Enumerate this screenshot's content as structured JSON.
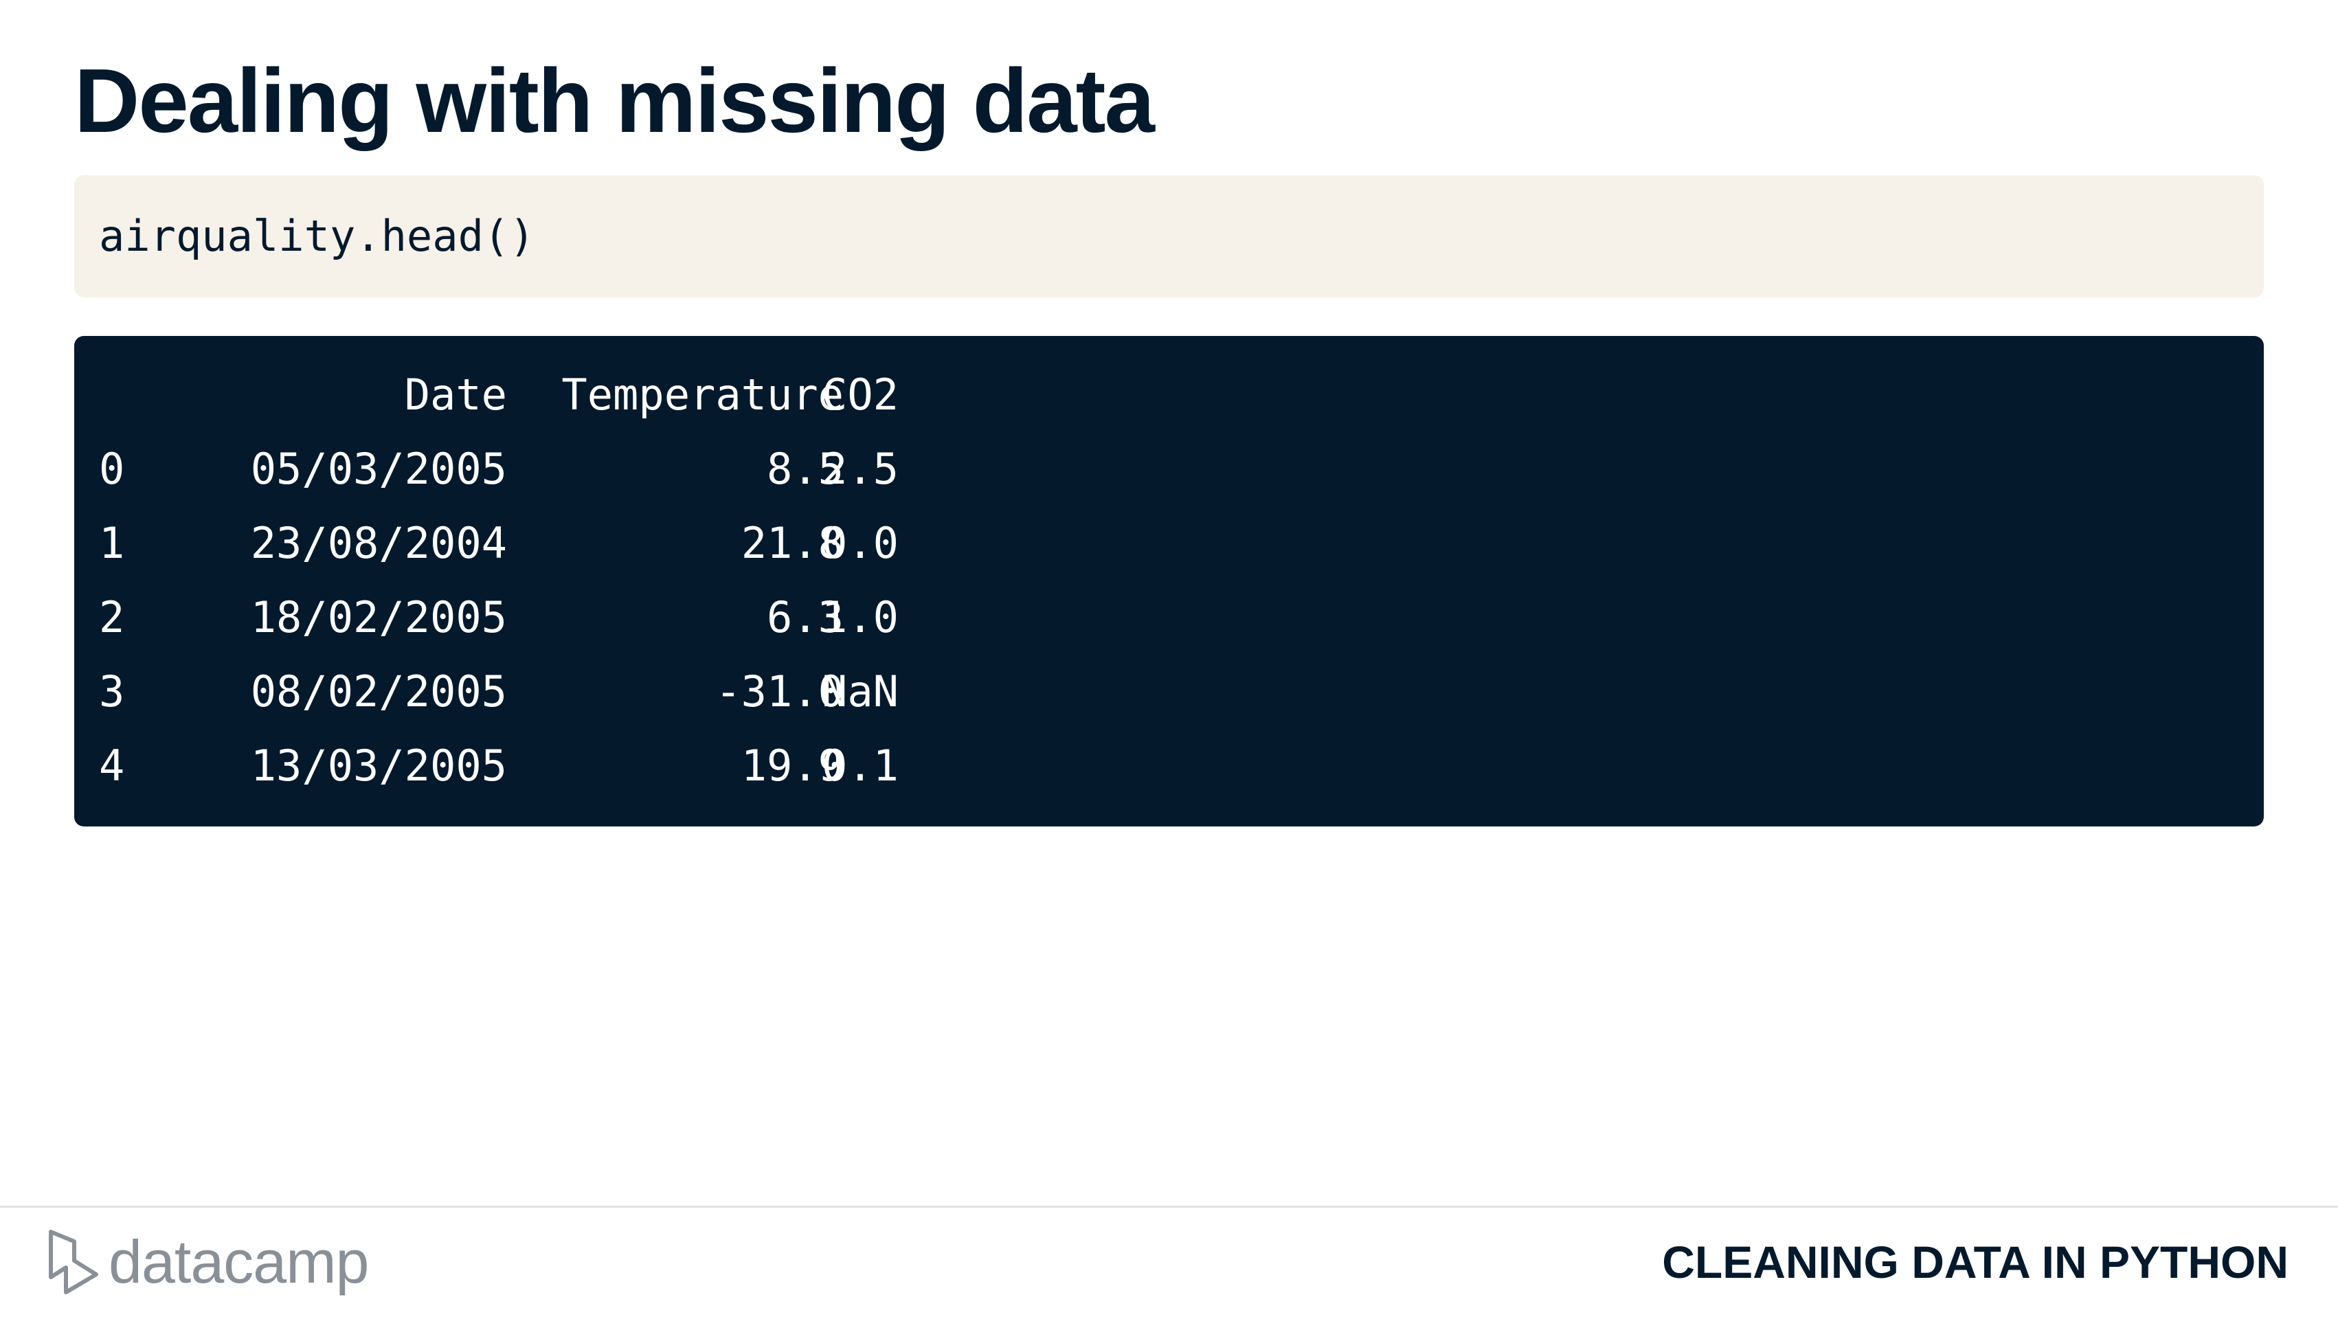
{
  "slide": {
    "title": "Dealing with missing data"
  },
  "code": {
    "text": "airquality.head()"
  },
  "output": {
    "columns": [
      "Date",
      "Temperature",
      "CO2"
    ],
    "rows": [
      {
        "index": "0",
        "date": "05/03/2005",
        "temperature": "8.5",
        "co2": "2.5"
      },
      {
        "index": "1",
        "date": "23/08/2004",
        "temperature": "21.8",
        "co2": "0.0"
      },
      {
        "index": "2",
        "date": "18/02/2005",
        "temperature": "6.3",
        "co2": "1.0"
      },
      {
        "index": "3",
        "date": "08/02/2005",
        "temperature": "-31.0",
        "co2": "NaN"
      },
      {
        "index": "4",
        "date": "13/03/2005",
        "temperature": "19.9",
        "co2": "0.1"
      }
    ]
  },
  "footer": {
    "brand": "datacamp",
    "brand_icon": "datacamp-logo-icon",
    "course": "CLEANING DATA IN PYTHON"
  },
  "colors": {
    "navy": "#05192d",
    "code_bg": "#f6f1e9",
    "logo_gray": "#8a9097"
  }
}
